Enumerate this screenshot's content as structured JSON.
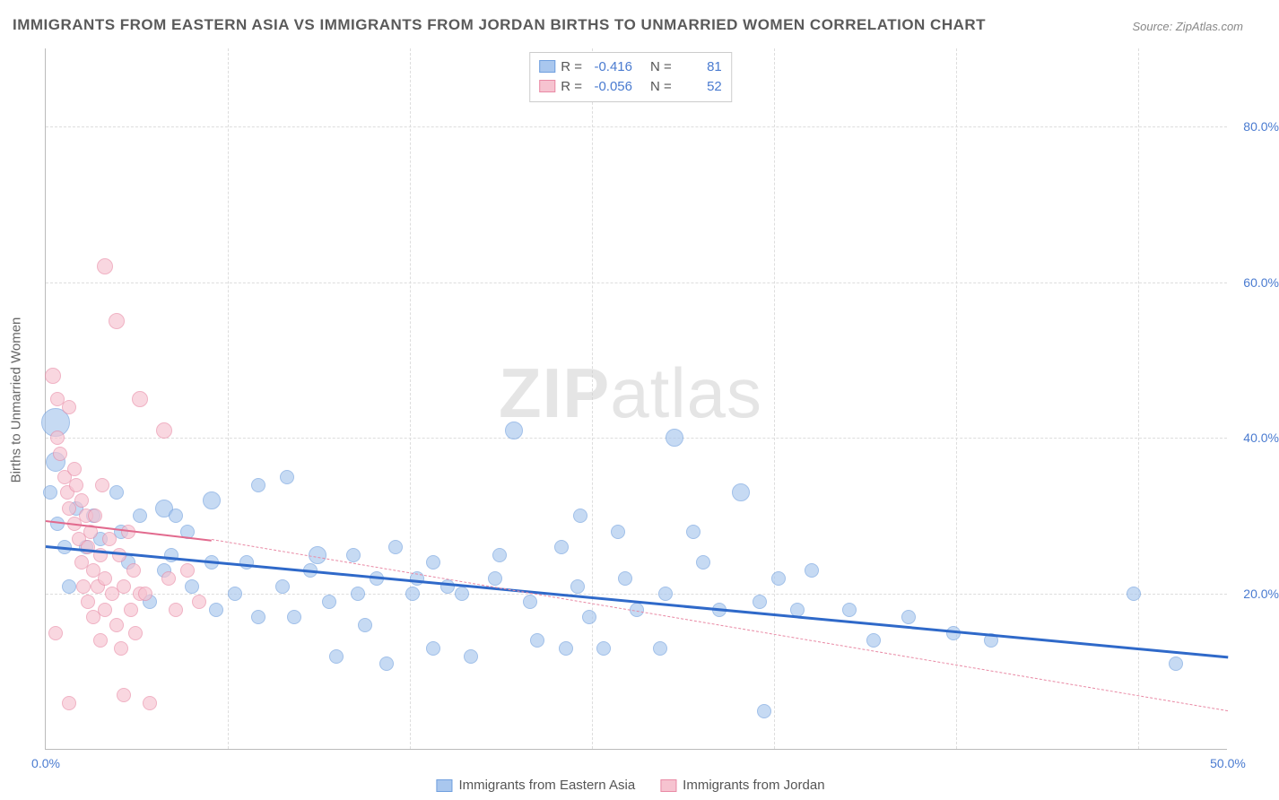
{
  "title": "IMMIGRANTS FROM EASTERN ASIA VS IMMIGRANTS FROM JORDAN BIRTHS TO UNMARRIED WOMEN CORRELATION CHART",
  "source": "Source: ZipAtlas.com",
  "watermark_zip": "ZIP",
  "watermark_atlas": "atlas",
  "y_axis_title": "Births to Unmarried Women",
  "chart": {
    "type": "scatter",
    "xlim": [
      0,
      50
    ],
    "ylim": [
      0,
      90
    ],
    "x_ticks": [
      0,
      50
    ],
    "x_tick_labels": [
      "0.0%",
      "50.0%"
    ],
    "x_minor_ticks": [
      7.7,
      15.4,
      23.1,
      30.8,
      38.5,
      46.2
    ],
    "y_ticks": [
      20,
      40,
      60,
      80
    ],
    "y_tick_labels": [
      "20.0%",
      "40.0%",
      "60.0%",
      "80.0%"
    ],
    "background_color": "#ffffff",
    "grid_color": "#dddddd",
    "axis_color": "#bbbbbb",
    "tick_label_color": "#4a7bd0"
  },
  "series": [
    {
      "name": "Immigrants from Eastern Asia",
      "fill": "#a9c7ee",
      "stroke": "#6f9fde",
      "stroke_solid": "#2f69c9",
      "fill_opacity": 0.65,
      "marker_r": 8,
      "R": "-0.416",
      "N": "81",
      "trend": {
        "x1": 0,
        "y1": 26.2,
        "x2": 50,
        "y2": 12.0,
        "width": 3,
        "dash": "solid",
        "extrapolate_dash": false
      },
      "points": [
        [
          0.4,
          42,
          16
        ],
        [
          0.4,
          37,
          11
        ],
        [
          0.2,
          33,
          8
        ],
        [
          1.3,
          31,
          8
        ],
        [
          0.5,
          29,
          8
        ],
        [
          1.7,
          26,
          8
        ],
        [
          2.0,
          30,
          8
        ],
        [
          3.0,
          33,
          8
        ],
        [
          3.2,
          28,
          8
        ],
        [
          3.5,
          24,
          8
        ],
        [
          4.0,
          30,
          8
        ],
        [
          4.4,
          19,
          8
        ],
        [
          5.0,
          31,
          10
        ],
        [
          5.0,
          23,
          8
        ],
        [
          5.5,
          30,
          8
        ],
        [
          5.3,
          25,
          8
        ],
        [
          6.0,
          28,
          8
        ],
        [
          6.2,
          21,
          8
        ],
        [
          7.0,
          32,
          10
        ],
        [
          7.0,
          24,
          8
        ],
        [
          7.2,
          18,
          8
        ],
        [
          9.0,
          34,
          8
        ],
        [
          8.0,
          20,
          8
        ],
        [
          8.5,
          24,
          8
        ],
        [
          9.0,
          17,
          8
        ],
        [
          10.2,
          35,
          8
        ],
        [
          10.0,
          21,
          8
        ],
        [
          10.5,
          17,
          8
        ],
        [
          11.2,
          23,
          8
        ],
        [
          11.5,
          25,
          10
        ],
        [
          12.0,
          19,
          8
        ],
        [
          12.3,
          12,
          8
        ],
        [
          13.0,
          25,
          8
        ],
        [
          13.2,
          20,
          8
        ],
        [
          13.5,
          16,
          8
        ],
        [
          14.0,
          22,
          8
        ],
        [
          14.4,
          11,
          8
        ],
        [
          14.8,
          26,
          8
        ],
        [
          15.5,
          20,
          8
        ],
        [
          15.7,
          22,
          8
        ],
        [
          16.4,
          24,
          8
        ],
        [
          16.4,
          13,
          8
        ],
        [
          17.0,
          21,
          8
        ],
        [
          17.6,
          20,
          8
        ],
        [
          18.0,
          12,
          8
        ],
        [
          19.0,
          22,
          8
        ],
        [
          19.2,
          25,
          8
        ],
        [
          19.8,
          41,
          10
        ],
        [
          20.5,
          19,
          8
        ],
        [
          20.8,
          14,
          8
        ],
        [
          21.8,
          26,
          8
        ],
        [
          22.0,
          13,
          8
        ],
        [
          22.5,
          21,
          8
        ],
        [
          22.6,
          30,
          8
        ],
        [
          23.0,
          17,
          8
        ],
        [
          23.6,
          13,
          8
        ],
        [
          24.2,
          28,
          8
        ],
        [
          24.5,
          22,
          8
        ],
        [
          25.0,
          18,
          8
        ],
        [
          26.0,
          13,
          8
        ],
        [
          26.2,
          20,
          8
        ],
        [
          26.6,
          40,
          10
        ],
        [
          27.4,
          28,
          8
        ],
        [
          27.8,
          24,
          8
        ],
        [
          28.5,
          18,
          8
        ],
        [
          29.4,
          33,
          10
        ],
        [
          30.2,
          19,
          8
        ],
        [
          30.4,
          5,
          8
        ],
        [
          31.0,
          22,
          8
        ],
        [
          31.8,
          18,
          8
        ],
        [
          32.4,
          23,
          8
        ],
        [
          34.0,
          18,
          8
        ],
        [
          35.0,
          14,
          8
        ],
        [
          36.5,
          17,
          8
        ],
        [
          38.4,
          15,
          8
        ],
        [
          40.0,
          14,
          8
        ],
        [
          46.0,
          20,
          8
        ],
        [
          47.8,
          11,
          8
        ],
        [
          2.3,
          27,
          8
        ],
        [
          1.0,
          21,
          8
        ],
        [
          0.8,
          26,
          8
        ]
      ]
    },
    {
      "name": "Immigrants from Jordan",
      "fill": "#f6c3d0",
      "stroke": "#e98aa5",
      "stroke_solid": "#e26a8e",
      "fill_opacity": 0.65,
      "marker_r": 8,
      "R": "-0.056",
      "N": "52",
      "trend": {
        "x1": 0,
        "y1": 29.5,
        "x2": 7.0,
        "y2": 27.0,
        "width": 2.5,
        "dash": "solid",
        "extrapolate": {
          "x2": 50,
          "y2": 5.0
        }
      },
      "points": [
        [
          0.3,
          48,
          9
        ],
        [
          0.5,
          45,
          8
        ],
        [
          0.5,
          40,
          8
        ],
        [
          0.6,
          38,
          8
        ],
        [
          0.8,
          35,
          8
        ],
        [
          0.9,
          33,
          8
        ],
        [
          1.0,
          44,
          8
        ],
        [
          1.0,
          31,
          8
        ],
        [
          1.2,
          36,
          8
        ],
        [
          1.2,
          29,
          8
        ],
        [
          1.3,
          34,
          8
        ],
        [
          1.4,
          27,
          8
        ],
        [
          1.5,
          32,
          8
        ],
        [
          1.5,
          24,
          8
        ],
        [
          1.6,
          21,
          8
        ],
        [
          1.7,
          30,
          8
        ],
        [
          1.8,
          26,
          8
        ],
        [
          1.8,
          19,
          8
        ],
        [
          1.9,
          28,
          8
        ],
        [
          2.0,
          23,
          8
        ],
        [
          2.0,
          17,
          8
        ],
        [
          2.1,
          30,
          8
        ],
        [
          2.2,
          21,
          8
        ],
        [
          2.3,
          25,
          8
        ],
        [
          2.3,
          14,
          8
        ],
        [
          2.4,
          34,
          8
        ],
        [
          2.5,
          18,
          8
        ],
        [
          2.5,
          22,
          8
        ],
        [
          2.5,
          62,
          9
        ],
        [
          2.7,
          27,
          8
        ],
        [
          2.8,
          20,
          8
        ],
        [
          3.0,
          55,
          9
        ],
        [
          3.0,
          16,
          8
        ],
        [
          3.1,
          25,
          8
        ],
        [
          3.2,
          13,
          8
        ],
        [
          3.3,
          21,
          8
        ],
        [
          3.5,
          28,
          8
        ],
        [
          3.6,
          18,
          8
        ],
        [
          3.7,
          23,
          8
        ],
        [
          3.8,
          15,
          8
        ],
        [
          4.0,
          45,
          9
        ],
        [
          4.0,
          20,
          8
        ],
        [
          4.2,
          20,
          8
        ],
        [
          4.4,
          6,
          8
        ],
        [
          1.0,
          6,
          8
        ],
        [
          0.4,
          15,
          8
        ],
        [
          5.0,
          41,
          9
        ],
        [
          5.2,
          22,
          8
        ],
        [
          5.5,
          18,
          8
        ],
        [
          6.0,
          23,
          8
        ],
        [
          6.5,
          19,
          8
        ],
        [
          3.3,
          7,
          8
        ]
      ]
    }
  ],
  "stats_legend": {
    "R_label": "R =",
    "N_label": "N ="
  },
  "bottom_legend": {
    "series1_label": "Immigrants from Eastern Asia",
    "series2_label": "Immigrants from Jordan"
  }
}
